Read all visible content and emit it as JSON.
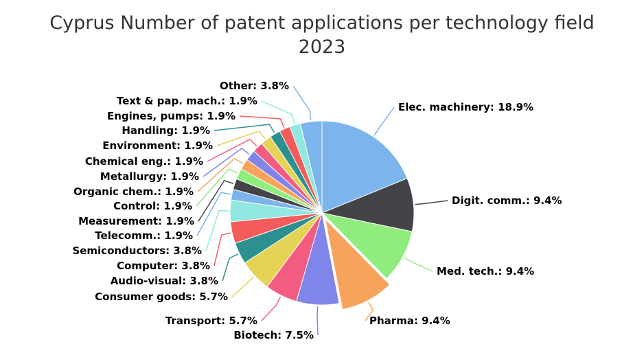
{
  "chart_data": {
    "type": "pie",
    "title": "Cyprus Number of patent applications per technology field",
    "subtitle": "2023",
    "slices": [
      {
        "label": "Elec. machinery",
        "value": 18.9,
        "display": "Elec. machinery: 18.9%",
        "color": "#7cb5ec"
      },
      {
        "label": "Digit. comm.",
        "value": 9.4,
        "display": "Digit. comm.: 9.4%",
        "color": "#434348"
      },
      {
        "label": "Med. tech.",
        "value": 9.4,
        "display": "Med. tech.: 9.4%",
        "color": "#90ed7d"
      },
      {
        "label": "Pharma",
        "value": 9.4,
        "display": "Pharma: 9.4%",
        "color": "#f7a35c",
        "offset": true
      },
      {
        "label": "Biotech",
        "value": 7.5,
        "display": "Biotech: 7.5%",
        "color": "#8085e9"
      },
      {
        "label": "Transport",
        "value": 5.7,
        "display": "Transport: 5.7%",
        "color": "#f15c80"
      },
      {
        "label": "Consumer goods",
        "value": 5.7,
        "display": "Consumer goods: 5.7%",
        "color": "#e4d354"
      },
      {
        "label": "Audio-visual",
        "value": 3.8,
        "display": "Audio-visual: 3.8%",
        "color": "#2b908f"
      },
      {
        "label": "Computer",
        "value": 3.8,
        "display": "Computer: 3.8%",
        "color": "#f45b5b"
      },
      {
        "label": "Semiconductors",
        "value": 3.8,
        "display": "Semiconductors: 3.8%",
        "color": "#91e8e1"
      },
      {
        "label": "Telecomm.",
        "value": 1.9,
        "display": "Telecomm.: 1.9%",
        "color": "#7cb5ec"
      },
      {
        "label": "Measurement",
        "value": 1.9,
        "display": "Measurement: 1.9%",
        "color": "#434348"
      },
      {
        "label": "Control",
        "value": 1.9,
        "display": "Control: 1.9%",
        "color": "#90ed7d"
      },
      {
        "label": "Organic chem.",
        "value": 1.9,
        "display": "Organic chem.: 1.9%",
        "color": "#f7a35c"
      },
      {
        "label": "Metallurgy",
        "value": 1.9,
        "display": "Metallurgy: 1.9%",
        "color": "#8085e9"
      },
      {
        "label": "Chemical eng.",
        "value": 1.9,
        "display": "Chemical eng.: 1.9%",
        "color": "#f15c80"
      },
      {
        "label": "Environment",
        "value": 1.9,
        "display": "Environment: 1.9%",
        "color": "#e4d354"
      },
      {
        "label": "Handling",
        "value": 1.9,
        "display": "Handling: 1.9%",
        "color": "#2b908f"
      },
      {
        "label": "Engines, pumps",
        "value": 1.9,
        "display": "Engines, pumps: 1.9%",
        "color": "#f45b5b"
      },
      {
        "label": "Text & pap. mach.",
        "value": 1.9,
        "display": "Text & pap. mach.: 1.9%",
        "color": "#91e8e1"
      },
      {
        "label": "Other",
        "value": 3.8,
        "display": "Other: 3.8%",
        "color": "#7cb5ec"
      }
    ]
  }
}
